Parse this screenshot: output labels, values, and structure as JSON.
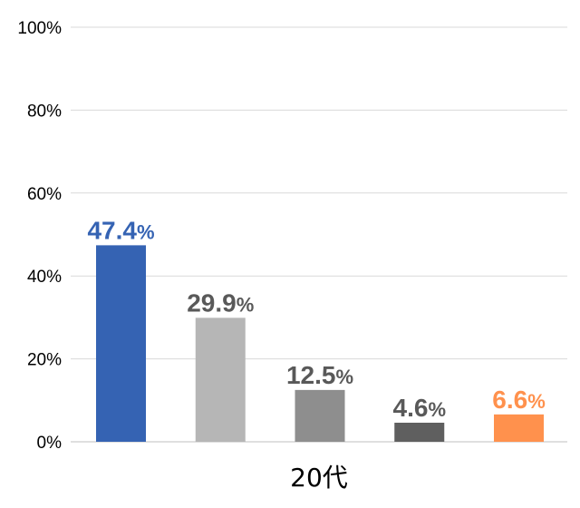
{
  "chart_data": {
    "type": "bar",
    "categories": [
      "20代"
    ],
    "series": [
      {
        "values": [
          47.4
        ],
        "color": "#3563b3",
        "label_color": "#3563b3"
      },
      {
        "values": [
          29.9
        ],
        "color": "#b6b6b6",
        "label_color": "#595959"
      },
      {
        "values": [
          12.5
        ],
        "color": "#8e8e8e",
        "label_color": "#595959"
      },
      {
        "values": [
          4.6
        ],
        "color": "#5f5f5f",
        "label_color": "#595959"
      },
      {
        "values": [
          6.6
        ],
        "color": "#ff914d",
        "label_color": "#ff914d"
      }
    ],
    "data_labels": [
      "47.4",
      "29.9",
      "12.5",
      "4.6",
      "6.6"
    ],
    "data_label_suffix": "%",
    "yticks": [
      "0%",
      "20%",
      "40%",
      "60%",
      "80%",
      "100%"
    ],
    "ylim": [
      0,
      100
    ],
    "grid": true,
    "legend": "none"
  }
}
